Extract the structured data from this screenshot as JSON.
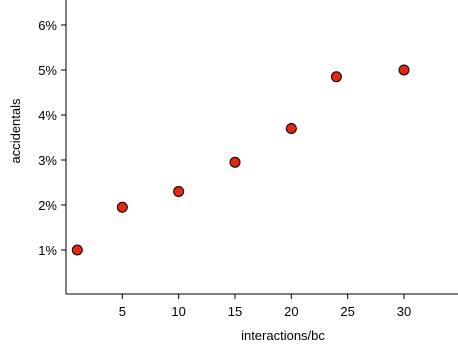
{
  "chart_data": {
    "type": "scatter",
    "title": "",
    "xlabel": "interactions/bc",
    "ylabel": "accidentals",
    "xlim": [
      0,
      35
    ],
    "ylim": [
      0.0,
      0.066
    ],
    "x_ticks": [
      5,
      10,
      15,
      20,
      25,
      30
    ],
    "x_tick_labels": [
      "5",
      "10",
      "15",
      "20",
      "25",
      "30"
    ],
    "y_ticks": [
      0.01,
      0.02,
      0.03,
      0.04,
      0.05,
      0.06
    ],
    "y_tick_labels": [
      "1%",
      "2%",
      "3%",
      "4%",
      "5%",
      "6%"
    ],
    "grid": false,
    "legend": "none",
    "marker_color": "#e8260e",
    "marker_edge_color": "#000000",
    "series": [
      {
        "points": [
          {
            "x": 1,
            "y": 0.01
          },
          {
            "x": 5,
            "y": 0.0195
          },
          {
            "x": 10,
            "y": 0.023
          },
          {
            "x": 15,
            "y": 0.0295
          },
          {
            "x": 20,
            "y": 0.037
          },
          {
            "x": 24,
            "y": 0.0485
          },
          {
            "x": 30,
            "y": 0.05
          }
        ]
      }
    ]
  }
}
